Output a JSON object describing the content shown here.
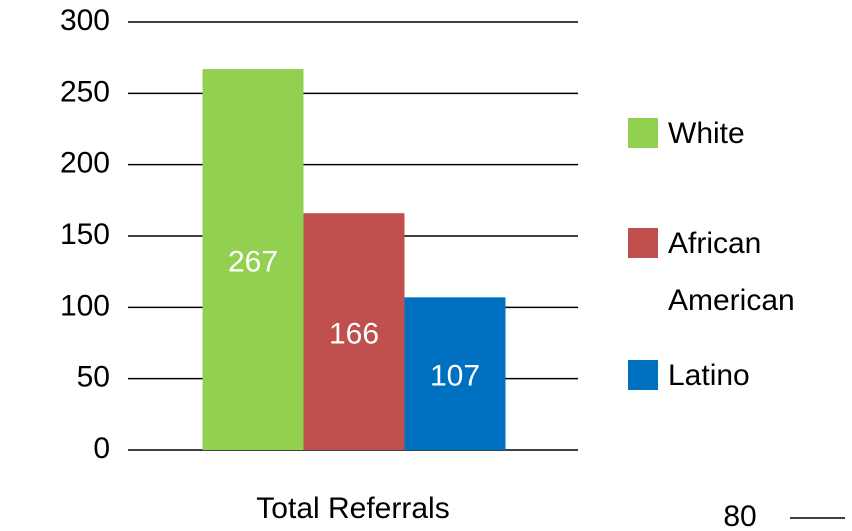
{
  "chart_data": {
    "type": "bar",
    "categories": [
      "Total Referrals"
    ],
    "series": [
      {
        "name": "White",
        "color": "#92d050",
        "values": [
          267
        ]
      },
      {
        "name": "African American",
        "color": "#c0504d",
        "values": [
          166
        ]
      },
      {
        "name": "Latino",
        "color": "#0070c0",
        "values": [
          107
        ]
      }
    ],
    "ylim": [
      0,
      300
    ],
    "yticks": [
      0,
      50,
      100,
      150,
      200,
      250,
      300
    ],
    "grid": true,
    "legend": "right"
  },
  "page_number": "80"
}
